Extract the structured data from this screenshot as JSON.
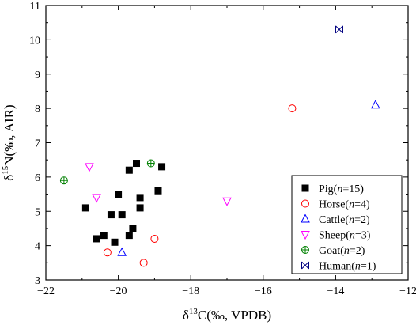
{
  "chart_data": {
    "type": "scatter",
    "xlabel_prefix": "δ",
    "xlabel_sup": "13",
    "xlabel_rest": "C(‰, VPDB)",
    "ylabel_prefix": "δ",
    "ylabel_sup": "15",
    "ylabel_rest": "N(‰, AIR)",
    "xlim": [
      -22,
      -12
    ],
    "ylim": [
      3,
      11
    ],
    "xticks": [
      -22,
      -20,
      -18,
      -16,
      -14,
      -12
    ],
    "yticks": [
      3,
      4,
      5,
      6,
      7,
      8,
      9,
      10,
      11
    ],
    "grid": false,
    "legend_position": "bottom-right",
    "series": [
      {
        "name": "Pig",
        "n_label": "(n=15)",
        "n_prefix": "(",
        "n_var": "n",
        "n_value": "=15)",
        "marker": "filled-square",
        "color": "#000000",
        "points": [
          [
            -20.9,
            5.1
          ],
          [
            -20.6,
            4.2
          ],
          [
            -20.4,
            4.3
          ],
          [
            -20.2,
            4.9
          ],
          [
            -20.1,
            4.1
          ],
          [
            -20.0,
            5.5
          ],
          [
            -19.9,
            4.9
          ],
          [
            -19.7,
            4.3
          ],
          [
            -19.6,
            4.5
          ],
          [
            -19.7,
            6.2
          ],
          [
            -19.5,
            6.4
          ],
          [
            -19.4,
            5.4
          ],
          [
            -19.4,
            5.1
          ],
          [
            -18.9,
            5.6
          ],
          [
            -18.8,
            6.3
          ]
        ]
      },
      {
        "name": "Horse",
        "n_prefix": "(",
        "n_var": "n",
        "n_value": "=4)",
        "marker": "open-circle",
        "color": "#ff0000",
        "points": [
          [
            -20.3,
            3.8
          ],
          [
            -19.3,
            3.5
          ],
          [
            -19.0,
            4.2
          ],
          [
            -15.2,
            8.0
          ]
        ]
      },
      {
        "name": "Cattle",
        "n_prefix": "(",
        "n_var": "n",
        "n_value": "=2)",
        "marker": "open-triangle-up",
        "color": "#0000ff",
        "points": [
          [
            -19.9,
            3.8
          ],
          [
            -12.9,
            8.1
          ]
        ]
      },
      {
        "name": "Sheep",
        "n_prefix": "(",
        "n_var": "n",
        "n_value": "=3)",
        "marker": "open-triangle-down",
        "color": "#ff00ff",
        "points": [
          [
            -20.8,
            6.3
          ],
          [
            -20.6,
            5.4
          ],
          [
            -17.0,
            5.3
          ]
        ]
      },
      {
        "name": "Goat",
        "n_prefix": "(",
        "n_var": "n",
        "n_value": "=2)",
        "marker": "circle-plus",
        "color": "#008000",
        "points": [
          [
            -21.5,
            5.9
          ],
          [
            -19.1,
            6.4
          ]
        ]
      },
      {
        "name": "Human",
        "n_prefix": "(",
        "n_var": "n",
        "n_value": "=1)",
        "marker": "x-square-ish",
        "color": "#000080",
        "points": [
          [
            -13.9,
            10.3
          ]
        ]
      }
    ]
  }
}
